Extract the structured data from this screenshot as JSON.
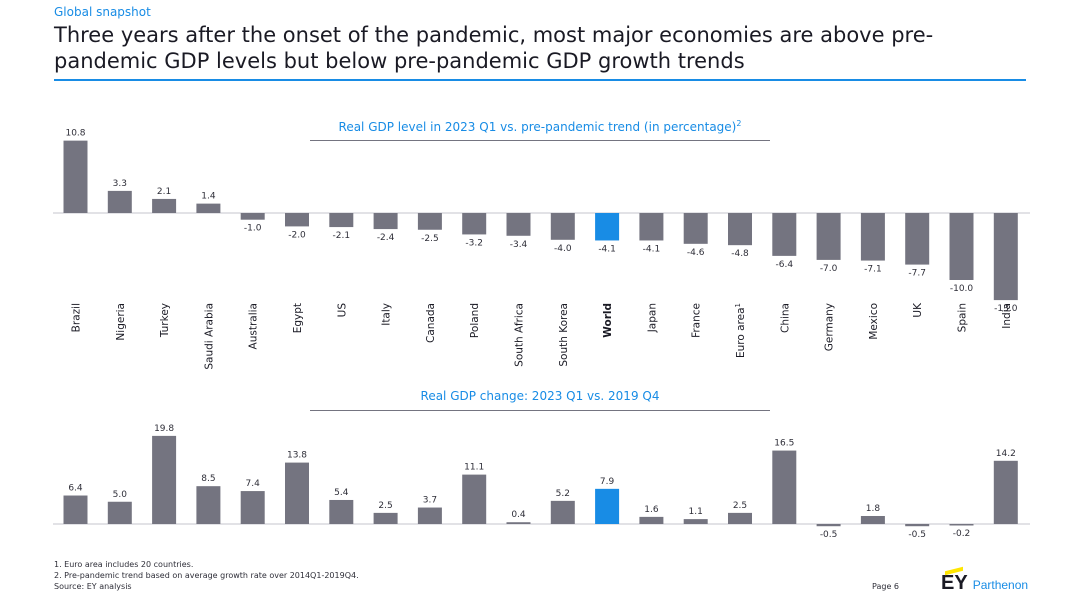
{
  "header": {
    "section_label": "Global snapshot",
    "title": "Three years after the onset of the pandemic, most major economies are above pre-pandemic GDP levels but below pre-pandemic GDP growth trends"
  },
  "colors": {
    "bar": "#747480",
    "highlight": "#188ce5",
    "accent": "#188ce5",
    "text": "#2e2e38"
  },
  "chart_data": [
    {
      "type": "bar",
      "title": "Real GDP level in 2023 Q1 vs. pre-pandemic trend (in percentage)",
      "title_superscript": "2",
      "categories": [
        "Brazil",
        "Nigeria",
        "Turkey",
        "Saudi Arabia",
        "Australia",
        "Egypt",
        "US",
        "Italy",
        "Canada",
        "Poland",
        "South Africa",
        "South Korea",
        "World",
        "Japan",
        "France",
        "Euro area",
        "China",
        "Germany",
        "Mexico",
        "UK",
        "Spain",
        "India"
      ],
      "category_superscripts": {
        "Euro area": "1"
      },
      "values": [
        10.8,
        3.3,
        2.1,
        1.4,
        -1.0,
        -2.0,
        -2.1,
        -2.4,
        -2.5,
        -3.2,
        -3.4,
        -4.0,
        -4.1,
        -4.1,
        -4.6,
        -4.8,
        -6.4,
        -7.0,
        -7.1,
        -7.7,
        -10.0,
        -13.0
      ],
      "value_labels": [
        "10.8",
        "3.3",
        "2.1",
        "1.4",
        "-1.0",
        "-2.0",
        "-2.1",
        "-2.4",
        "-2.5",
        "-3.2",
        "-3.4",
        "-4.0",
        "-4.1",
        "-4.1",
        "-4.6",
        "-4.8",
        "-6.4",
        "-7.0",
        "-7.1",
        "-7.7",
        "-10.0",
        "-13.0"
      ],
      "highlight": "World",
      "xlabel": "",
      "ylabel": "",
      "ylim": [
        -13.0,
        10.8
      ],
      "grid": false
    },
    {
      "type": "bar",
      "title": "Real GDP change: 2023 Q1 vs. 2019 Q4",
      "categories": [
        "Brazil",
        "Nigeria",
        "Turkey",
        "Saudi Arabia",
        "Australia",
        "Egypt",
        "US",
        "Italy",
        "Canada",
        "Poland",
        "South Africa",
        "South Korea",
        "World",
        "Japan",
        "France",
        "Euro area",
        "China",
        "Germany",
        "Mexico",
        "UK",
        "Spain",
        "India"
      ],
      "values": [
        6.4,
        5.0,
        19.8,
        8.5,
        7.4,
        13.8,
        5.4,
        2.5,
        3.7,
        11.1,
        0.4,
        5.2,
        7.9,
        1.6,
        1.1,
        2.5,
        16.5,
        -0.5,
        1.8,
        -0.5,
        -0.2,
        14.2
      ],
      "value_labels": [
        "6.4",
        "5.0",
        "19.8",
        "8.5",
        "7.4",
        "13.8",
        "5.4",
        "2.5",
        "3.7",
        "11.1",
        "0.4",
        "5.2",
        "7.9",
        "1.6",
        "1.1",
        "2.5",
        "16.5",
        "-0.5",
        "1.8",
        "-0.5",
        "-0.2",
        "14.2"
      ],
      "highlight": "World",
      "xlabel": "",
      "ylabel": "",
      "ylim": [
        -0.5,
        19.8
      ],
      "grid": false
    }
  ],
  "footnotes": [
    "1.   Euro area includes 20 countries.",
    "2.   Pre-pandemic trend based on average growth rate over 2014Q1-2019Q4.",
    "Source: EY analysis"
  ],
  "footer": {
    "page": "Page 6",
    "logo_mark": "EY",
    "logo_text": "Parthenon"
  }
}
